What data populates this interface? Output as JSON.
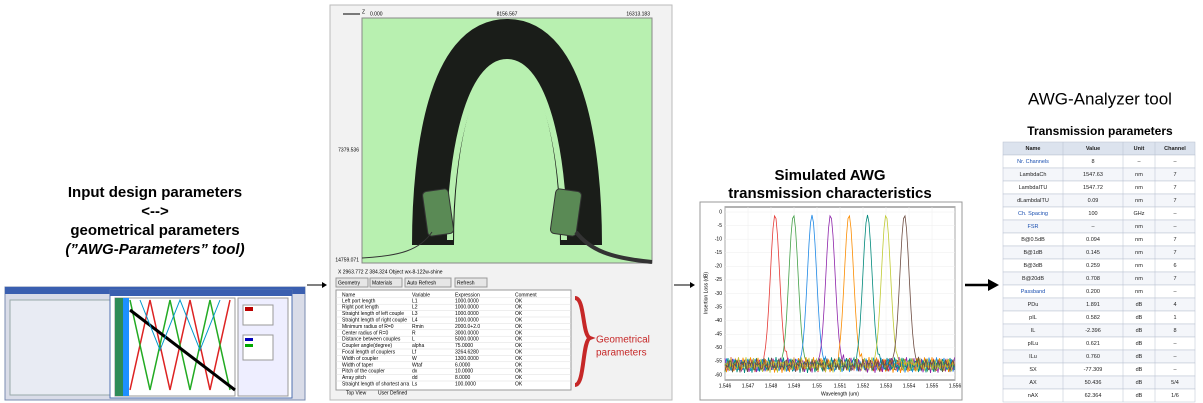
{
  "left": {
    "title_lines": [
      "Input design parameters",
      "<-->",
      "geometrical parameters",
      "(”AWG-Parameters” tool)"
    ]
  },
  "middle": {
    "axis_labels": [
      "0.000",
      "8156.567",
      "16313.183",
      "7379.536",
      "14759.071"
    ],
    "status": "X  2963.772   Z  384.324   Object  wx-8-122w-shine",
    "tabs": [
      "Geometry",
      "Materials",
      "Auto Refresh",
      "Refresh"
    ],
    "bottom_tabs": [
      "Top View",
      "User Defined"
    ],
    "table_header": [
      "Name",
      "Variable",
      "Expression",
      "Comment"
    ],
    "rows": [
      [
        "Left port length",
        "L1",
        "1000.0000",
        "OK"
      ],
      [
        "Right port length",
        "L2",
        "1000.0000",
        "OK"
      ],
      [
        "Straight length of left couple",
        "L3",
        "1000.0000",
        "OK"
      ],
      [
        "Straight length of right couple",
        "L4",
        "1000.0000",
        "OK"
      ],
      [
        "Minimum radius of R=0",
        "Rmin",
        "2000.0+2.0",
        "OK"
      ],
      [
        "Center radius of R=0",
        "R",
        "3000.0000",
        "OK"
      ],
      [
        "Distance between couples",
        "L",
        "5000.0000",
        "OK"
      ],
      [
        "Coupler angle(degree)",
        "alpha",
        "75.0000",
        "OK"
      ],
      [
        "Focal length of couplers",
        "Lf",
        "3264.6280",
        "OK"
      ],
      [
        "Width of coupler",
        "W",
        "1300.0000",
        "OK"
      ],
      [
        "Width of taper",
        "Wtaf",
        "6.0000",
        "OK"
      ],
      [
        "Pitch of the coupler",
        "dx",
        "10.0000",
        "OK"
      ],
      [
        "Array pitch",
        "dd",
        "8.0000",
        "OK"
      ],
      [
        "Straight length of shortest arra",
        "Ls",
        "100.0000",
        "OK"
      ]
    ],
    "annotation_lines": [
      "Geometrical",
      "parameters"
    ]
  },
  "spectrum": {
    "title_lines": [
      "Simulated AWG",
      "transmission  characteristics"
    ],
    "x_label": "Wavelength (um)",
    "y_label": "Insertion Loss (dB)",
    "x_ticks": [
      "1.546",
      "1.547",
      "1.548",
      "1.549",
      "1.55",
      "1.551",
      "1.552",
      "1.553",
      "1.554",
      "1.555",
      "1.556"
    ],
    "y_ticks": [
      "0",
      "-5",
      "-10",
      "-15",
      "-20",
      "-25",
      "-30",
      "-35",
      "-40",
      "-45",
      "-50",
      "-55",
      "-60"
    ]
  },
  "analyzer": {
    "title": "AWG-Analyzer tool",
    "table_title": "Transmission parameters",
    "header": [
      "Name",
      "Value",
      "Unit",
      "Channel"
    ],
    "rows": [
      [
        "Nr. Channels",
        "8",
        "–",
        "–"
      ],
      [
        "LambdaCh",
        "1547.63",
        "nm",
        "7"
      ],
      [
        "LambdaITU",
        "1547.72",
        "nm",
        "7"
      ],
      [
        "dLambdaITU",
        "0.09",
        "nm",
        "7"
      ],
      [
        "Ch. Spacing",
        "100",
        "GHz",
        "–"
      ],
      [
        "FSR",
        "–",
        "nm",
        "–"
      ],
      [
        "B@0.5dB",
        "0.094",
        "nm",
        "7"
      ],
      [
        "B@1dB",
        "0.145",
        "nm",
        "7"
      ],
      [
        "B@3dB",
        "0.259",
        "nm",
        "6"
      ],
      [
        "B@20dB",
        "0.708",
        "nm",
        "7"
      ],
      [
        "Passband",
        "0.200",
        "nm",
        "–"
      ],
      [
        "PDu",
        "1.891",
        "dB",
        "4"
      ],
      [
        "pIL",
        "0.582",
        "dB",
        "1"
      ],
      [
        "IL",
        "-2.396",
        "dB",
        "8"
      ],
      [
        "pILu",
        "0.621",
        "dB",
        "–"
      ],
      [
        "ILu",
        "0.760",
        "dB",
        "–"
      ],
      [
        "SX",
        "-77.309",
        "dB",
        "–"
      ],
      [
        "AX",
        "50.436",
        "dB",
        "5/4"
      ],
      [
        "nAX",
        "62.364",
        "dB",
        "1/6"
      ]
    ]
  }
}
